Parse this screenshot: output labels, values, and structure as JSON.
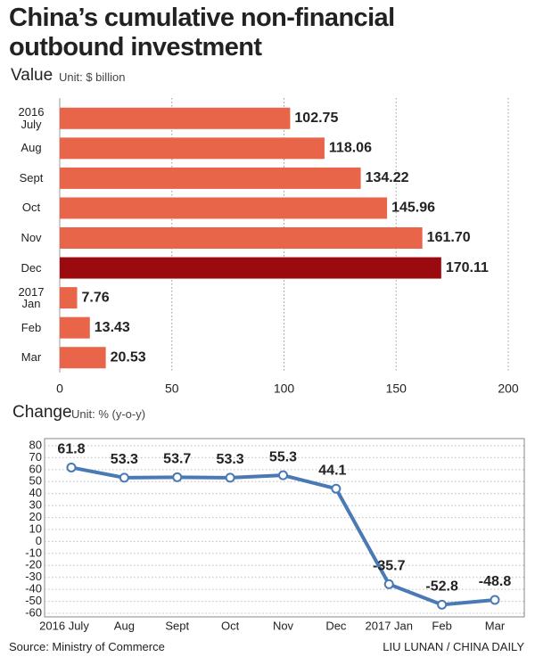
{
  "title": "China’s cumulative non-financial outbound investment",
  "source": "Source: Ministry of Commerce",
  "credit": "LIU LUNAN / CHINA DAILY",
  "chart_data": [
    {
      "type": "hbar",
      "title": "Value",
      "subtitle": "Unit: $ billion",
      "categories": [
        "2016\nJuly",
        "Aug",
        "Sept",
        "Oct",
        "Nov",
        "Dec",
        "2017\nJan",
        "Feb",
        "Mar"
      ],
      "values": [
        102.75,
        118.06,
        134.22,
        145.96,
        161.7,
        170.11,
        7.76,
        13.43,
        20.53
      ],
      "value_labels": [
        "102.75",
        "118.06",
        "134.22",
        "145.96",
        "161.70",
        "170.11",
        "7.76",
        "13.43",
        "20.53"
      ],
      "colors": [
        "#e8654a",
        "#e8654a",
        "#e8654a",
        "#e8654a",
        "#e8654a",
        "#9b0a0e",
        "#e8654a",
        "#e8654a",
        "#e8654a"
      ],
      "xlim": [
        0,
        200
      ],
      "xticks": [
        0,
        50,
        100,
        150,
        200
      ],
      "grid": true
    },
    {
      "type": "line",
      "title": "Change",
      "subtitle": "Unit: % (y-o-y)",
      "categories": [
        "2016 July",
        "Aug",
        "Sept",
        "Oct",
        "Nov",
        "Dec",
        "2017 Jan",
        "Feb",
        "Mar"
      ],
      "values": [
        61.8,
        53.3,
        53.7,
        53.3,
        55.3,
        44.1,
        -35.7,
        -52.8,
        -48.8
      ],
      "color": "#4a7ab5",
      "ylim": [
        -60,
        80
      ],
      "yticks": [
        -60,
        -50,
        -40,
        -30,
        -20,
        -10,
        0,
        10,
        20,
        30,
        40,
        50,
        60,
        70,
        80
      ],
      "grid": true
    }
  ]
}
